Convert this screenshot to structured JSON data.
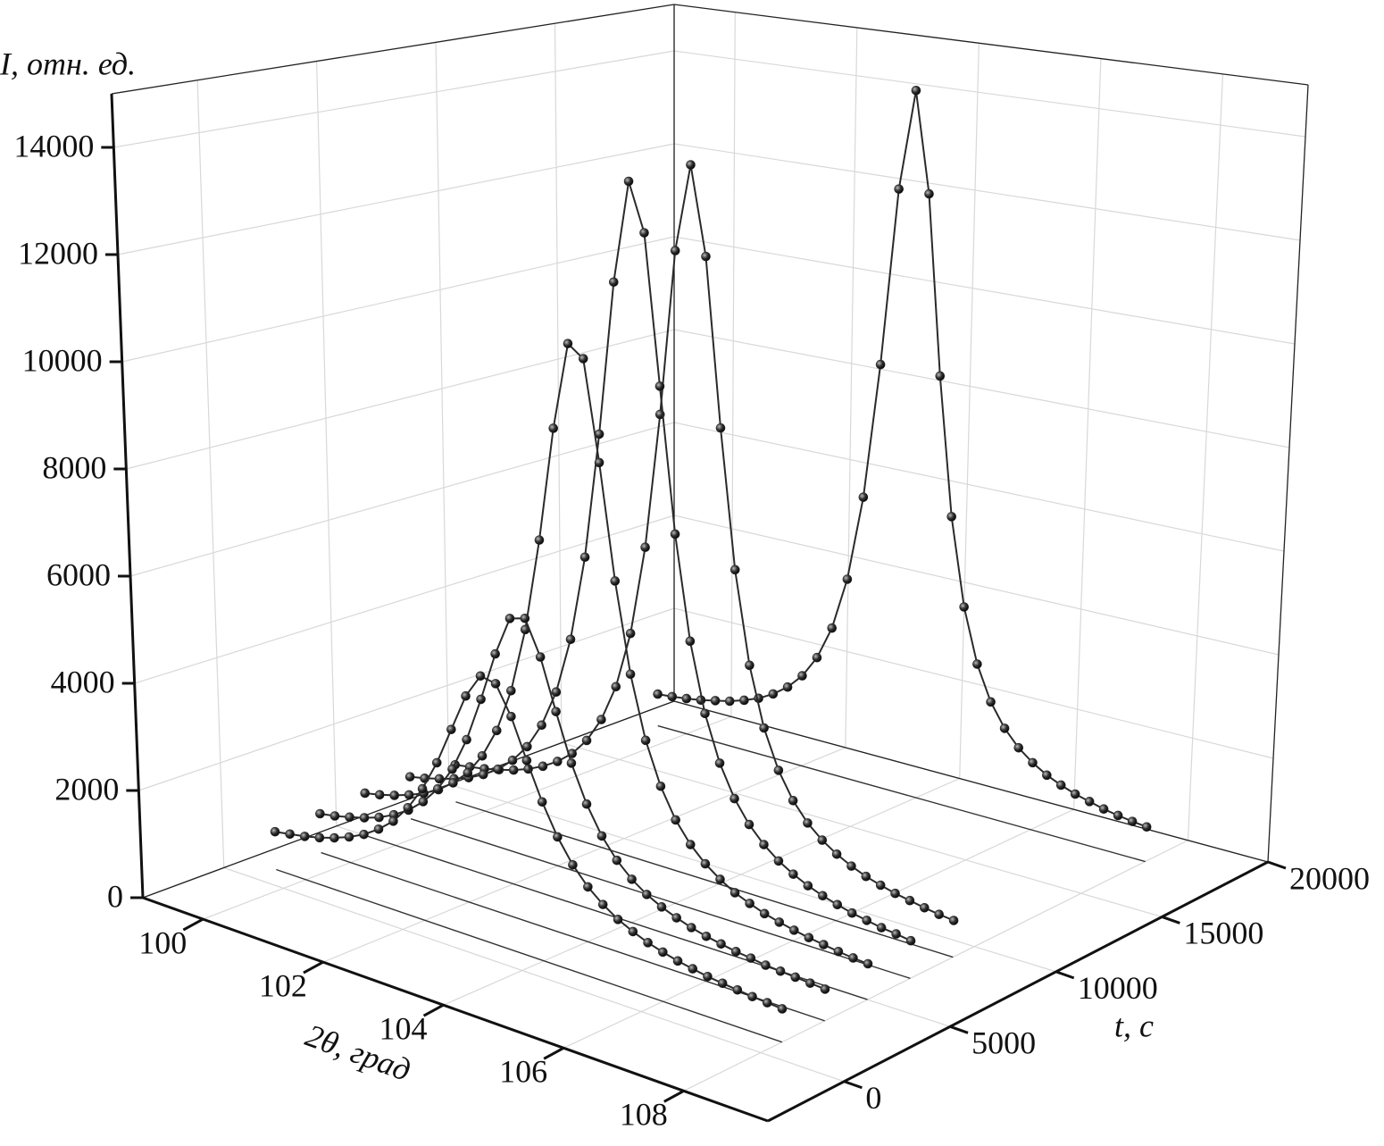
{
  "chart_data": {
    "type": "waterfall3d",
    "xlabel": "2θ, град",
    "ylabel": "t, с",
    "zlabel": "I, отн. ед.",
    "xlim": [
      99,
      109.4
    ],
    "ylim": [
      -3600,
      20000
    ],
    "zlim": [
      0,
      15000
    ],
    "xticks": [
      100,
      102,
      104,
      106,
      108
    ],
    "yticks": [
      0,
      5000,
      10000,
      15000,
      20000
    ],
    "zticks": [
      0,
      2000,
      4000,
      6000,
      8000,
      10000,
      12000,
      14000
    ],
    "grid": true,
    "color": "#2a2a2a",
    "x": [
      99.5,
      99.75,
      100,
      100.25,
      100.5,
      100.75,
      101,
      101.25,
      101.5,
      101.75,
      102,
      102.25,
      102.5,
      102.75,
      103,
      103.25,
      103.5,
      103.75,
      104,
      104.25,
      104.5,
      104.75,
      105,
      105.25,
      105.5,
      105.75,
      106,
      106.25,
      106.5,
      106.75,
      107,
      107.25,
      107.5,
      107.75,
      108
    ],
    "series": [
      {
        "t": 1000,
        "values": [
          720,
          770,
          820,
          890,
          980,
          1090,
          1230,
          1420,
          1660,
          2000,
          2440,
          3010,
          3710,
          4410,
          4860,
          4800,
          4280,
          3560,
          2890,
          2340,
          1920,
          1610,
          1380,
          1200,
          1070,
          960,
          880,
          810,
          760,
          710,
          680,
          650,
          620,
          600,
          580
        ]
      },
      {
        "t": 3000,
        "values": [
          750,
          800,
          870,
          950,
          1050,
          1190,
          1370,
          1620,
          1950,
          2410,
          3050,
          3890,
          4820,
          5560,
          5640,
          5000,
          4070,
          3200,
          2530,
          2030,
          1670,
          1410,
          1220,
          1080,
          970,
          880,
          810,
          760,
          710,
          680,
          640,
          620,
          600,
          580,
          560
        ]
      },
      {
        "t": 5000,
        "values": [
          830,
          890,
          970,
          1070,
          1190,
          1350,
          1570,
          1850,
          2260,
          2830,
          3670,
          4910,
          6680,
          8860,
          10520,
          10300,
          8420,
          6280,
          4620,
          3470,
          2700,
          2160,
          1790,
          1520,
          1320,
          1160,
          1050,
          950,
          880,
          820,
          770,
          730,
          690,
          660,
          640
        ]
      },
      {
        "t": 7000,
        "values": [
          830,
          890,
          970,
          1060,
          1170,
          1320,
          1510,
          1770,
          2120,
          2620,
          3340,
          4430,
          6080,
          8500,
          11460,
          13430,
          12510,
          9670,
          6950,
          5010,
          3730,
          2880,
          2300,
          1900,
          1610,
          1390,
          1230,
          1100,
          1000,
          920,
          850,
          800,
          750,
          720,
          680
        ]
      },
      {
        "t": 9000,
        "values": [
          740,
          790,
          840,
          910,
          990,
          1100,
          1240,
          1420,
          1660,
          2000,
          2490,
          3210,
          4320,
          6060,
          8690,
          11900,
          13600,
          11900,
          8690,
          6060,
          4320,
          3210,
          2490,
          2000,
          1660,
          1420,
          1240,
          1100,
          990,
          910,
          840,
          790,
          740,
          700,
          670
        ]
      },
      {
        "t": 18000,
        "values": [
          670,
          700,
          740,
          790,
          860,
          930,
          1030,
          1150,
          1320,
          1540,
          1850,
          2300,
          2980,
          4050,
          5790,
          8550,
          12160,
          14200,
          12160,
          8550,
          5790,
          4050,
          2980,
          2300,
          1850,
          1540,
          1320,
          1150,
          1030,
          930,
          860,
          790,
          740,
          700,
          670
        ]
      }
    ]
  }
}
